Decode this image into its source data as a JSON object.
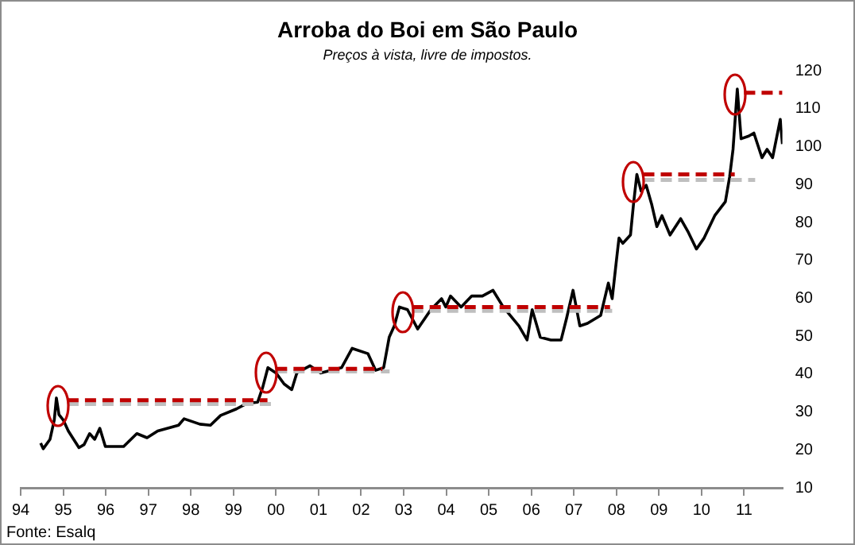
{
  "chart_data": {
    "type": "line",
    "title": "Arroba do Boi em São Paulo",
    "subtitle": "Preços à vista, livre de impostos.",
    "annotations": [
      "Fonte: Esalq"
    ],
    "xlim": [
      1994,
      2011.9
    ],
    "xticks": [
      {
        "value": 1994,
        "label": "94"
      },
      {
        "value": 1995,
        "label": "95"
      },
      {
        "value": 1996,
        "label": "96"
      },
      {
        "value": 1997,
        "label": "97"
      },
      {
        "value": 1998,
        "label": "98"
      },
      {
        "value": 1999,
        "label": "99"
      },
      {
        "value": 2000,
        "label": "00"
      },
      {
        "value": 2001,
        "label": "01"
      },
      {
        "value": 2002,
        "label": "02"
      },
      {
        "value": 2003,
        "label": "03"
      },
      {
        "value": 2004,
        "label": "04"
      },
      {
        "value": 2005,
        "label": "05"
      },
      {
        "value": 2006,
        "label": "06"
      },
      {
        "value": 2007,
        "label": "07"
      },
      {
        "value": 2008,
        "label": "08"
      },
      {
        "value": 2009,
        "label": "09"
      },
      {
        "value": 2010,
        "label": "10"
      },
      {
        "value": 2011,
        "label": "11"
      }
    ],
    "ylim": [
      10,
      120
    ],
    "yticks": [
      10,
      20,
      30,
      40,
      50,
      60,
      70,
      80,
      90,
      100,
      110,
      120
    ],
    "legend": false,
    "marker": "none",
    "series": [
      {
        "color": "#000000",
        "line_style": "solid",
        "x": [
          1994.47,
          1994.53,
          1994.69,
          1994.79,
          1994.84,
          1994.9,
          1995.0,
          1995.12,
          1995.37,
          1995.49,
          1995.62,
          1995.74,
          1995.86,
          1995.99,
          1996.42,
          1996.73,
          1996.97,
          1997.22,
          1997.71,
          1997.84,
          1998.21,
          1998.46,
          1998.7,
          1999.07,
          1999.32,
          1999.57,
          1999.69,
          1999.81,
          2000.0,
          2000.19,
          2000.37,
          2000.49,
          2000.8,
          2001.05,
          2001.3,
          2001.54,
          2001.79,
          2002.16,
          2002.34,
          2002.53,
          2002.66,
          2002.78,
          2002.9,
          2003.09,
          2003.33,
          2003.64,
          2003.89,
          2003.99,
          2004.1,
          2004.35,
          2004.6,
          2004.85,
          2005.1,
          2005.34,
          2005.71,
          2005.9,
          2006.02,
          2006.21,
          2006.46,
          2006.7,
          2006.83,
          2006.98,
          2007.14,
          2007.32,
          2007.63,
          2007.81,
          2007.9,
          2008.0,
          2008.06,
          2008.15,
          2008.33,
          2008.4,
          2008.48,
          2008.58,
          2008.7,
          2008.83,
          2008.95,
          2009.07,
          2009.26,
          2009.51,
          2009.69,
          2009.88,
          2010.06,
          2010.31,
          2010.56,
          2010.66,
          2010.74,
          2010.84,
          2010.93,
          2011.11,
          2011.23,
          2011.42,
          2011.54,
          2011.67,
          2011.85,
          2011.9
        ],
        "values": [
          21.8,
          20.3,
          22.8,
          27.9,
          33.7,
          29.3,
          27.9,
          25.0,
          20.6,
          21.4,
          24.3,
          22.8,
          25.7,
          20.9,
          20.9,
          24.3,
          23.2,
          25.0,
          26.5,
          28.2,
          26.8,
          26.5,
          29.1,
          30.8,
          32.3,
          32.6,
          36.6,
          41.7,
          40.3,
          37.4,
          35.9,
          40.3,
          42.2,
          40.3,
          41.0,
          41.7,
          46.8,
          45.4,
          41.0,
          41.7,
          49.7,
          52.7,
          57.7,
          57.0,
          51.9,
          57.0,
          59.9,
          57.7,
          60.6,
          57.7,
          60.6,
          60.6,
          62.1,
          57.7,
          52.7,
          49.0,
          57.0,
          49.7,
          49.0,
          49.0,
          54.8,
          62.1,
          52.7,
          53.4,
          55.5,
          64.0,
          59.9,
          70.0,
          75.9,
          74.5,
          76.7,
          84.7,
          92.7,
          88.3,
          89.8,
          84.7,
          78.9,
          81.8,
          76.7,
          81.0,
          77.4,
          73.0,
          75.9,
          81.8,
          85.5,
          92.0,
          99.3,
          115.2,
          102.1,
          102.8,
          103.6,
          97.1,
          99.3,
          97.1,
          107.2,
          100.7
        ]
      },
      {
        "color": "#bfbfbf",
        "line_style": "dashed",
        "x": [
          1995.1,
          1999.9
        ],
        "values": [
          32.1,
          32.1
        ]
      },
      {
        "color": "#bfbfbf",
        "line_style": "dashed",
        "x": [
          2000.0,
          2002.67
        ],
        "values": [
          40.7,
          40.7
        ]
      },
      {
        "color": "#bfbfbf",
        "line_style": "dashed",
        "x": [
          2003.2,
          2007.9
        ],
        "values": [
          56.7,
          56.7
        ]
      },
      {
        "color": "#bfbfbf",
        "line_style": "dashed",
        "x": [
          2008.63,
          2011.26
        ],
        "values": [
          91.2,
          91.2
        ]
      },
      {
        "color": "#c00000",
        "line_style": "dashed",
        "x": [
          1995.1,
          1999.8
        ],
        "values": [
          33.1,
          33.1
        ]
      },
      {
        "color": "#c00000",
        "line_style": "dashed",
        "x": [
          2000.0,
          2002.5
        ],
        "values": [
          41.4,
          41.4
        ]
      },
      {
        "color": "#c00000",
        "line_style": "dashed",
        "x": [
          2003.2,
          2007.85
        ],
        "values": [
          57.7,
          57.7
        ]
      },
      {
        "color": "#c00000",
        "line_style": "dashed",
        "x": [
          2008.63,
          2010.78
        ],
        "values": [
          92.7,
          92.7
        ]
      },
      {
        "color": "#c00000",
        "line_style": "dashed",
        "x": [
          2011.0,
          2011.9
        ],
        "values": [
          114.2,
          114.2
        ]
      }
    ]
  }
}
